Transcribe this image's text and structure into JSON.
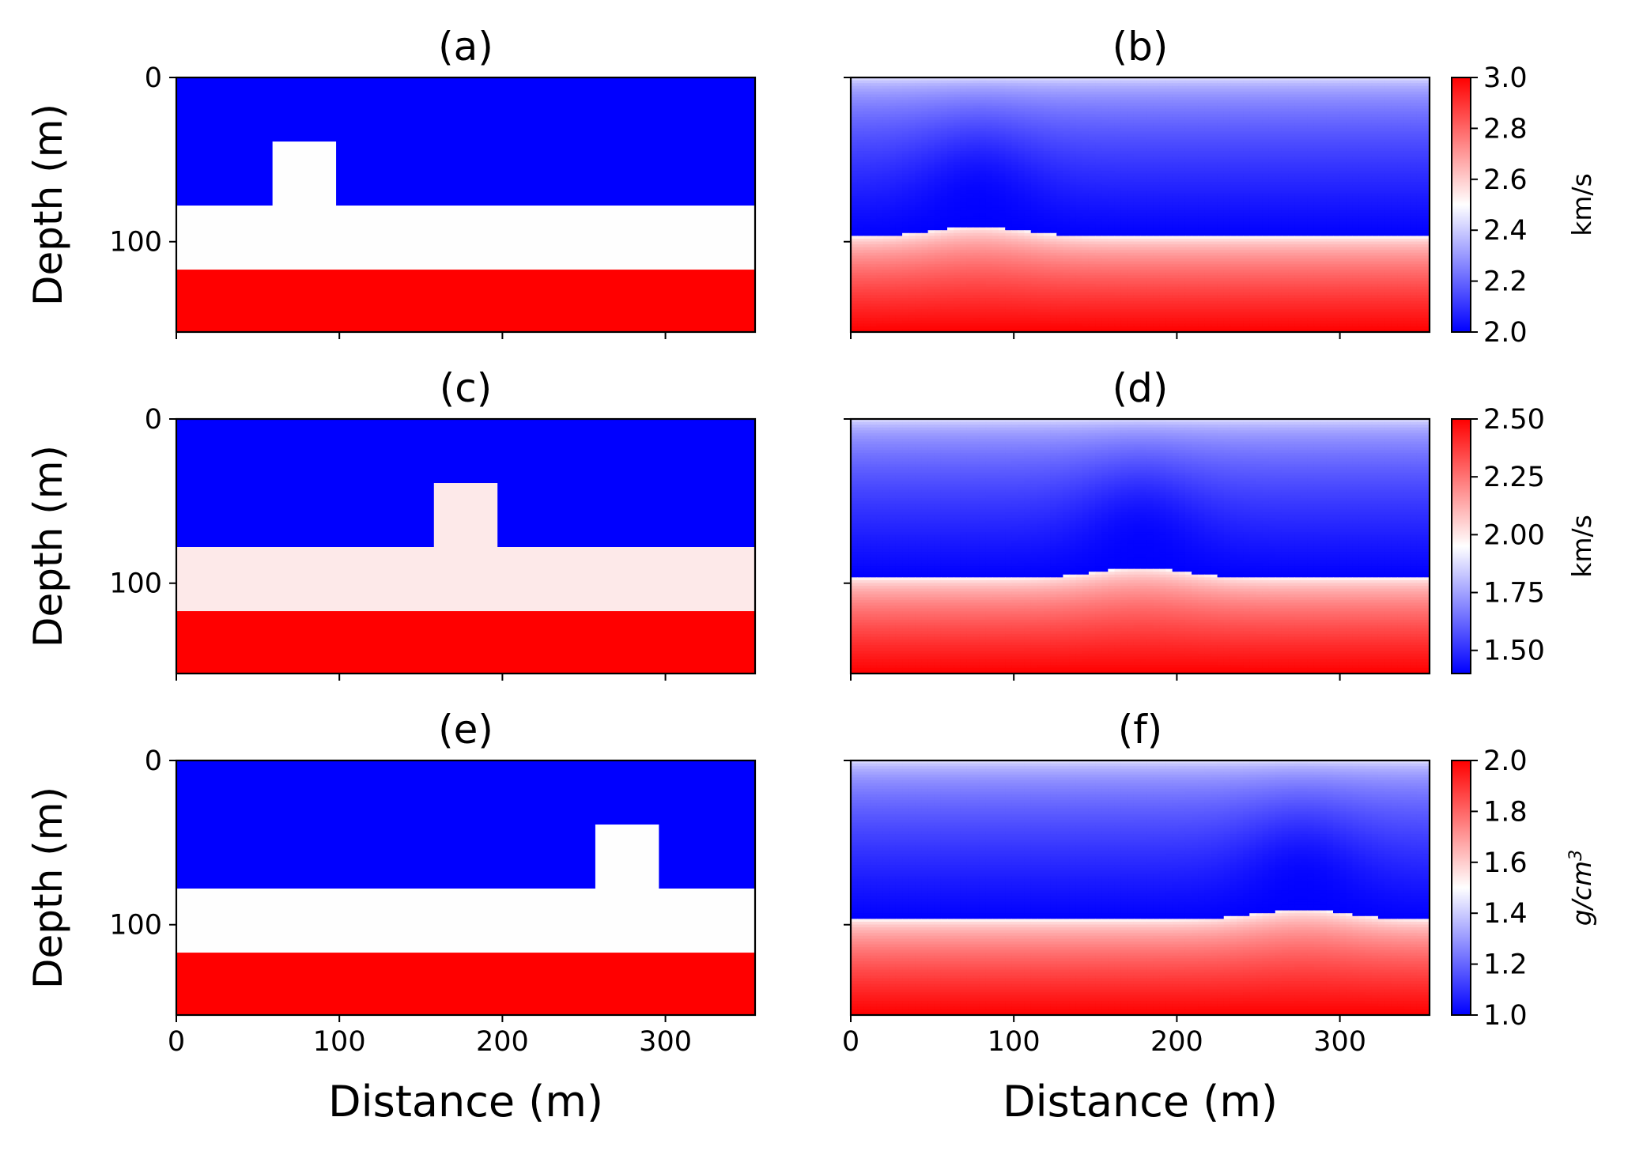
{
  "chart_data": [
    {
      "type": "heatmap",
      "id": "a",
      "title": "(a)",
      "xlabel": "",
      "ylabel": "Depth (m)",
      "xlim": [
        0,
        355
      ],
      "ylim": [
        155,
        0
      ],
      "xticks": [
        0,
        100,
        200,
        300
      ],
      "yticks": [
        0,
        100
      ],
      "xtick_labels": [
        "",
        "",
        "",
        ""
      ],
      "ytick_labels": [
        "0",
        "100"
      ],
      "colorscale": [
        "#0000ff",
        "#ffffff",
        "#ff0000"
      ],
      "model": {
        "layers": [
          {
            "top": 0,
            "bottom": 78,
            "color": "#0000ff"
          },
          {
            "top": 78,
            "bottom": 117,
            "color": "#fefefe"
          },
          {
            "top": 117,
            "bottom": 155,
            "color": "#ff0000"
          }
        ],
        "anomaly": {
          "x0": 59,
          "x1": 98,
          "top": 39,
          "bottom": 78,
          "color": "#fefefe"
        }
      }
    },
    {
      "type": "heatmap",
      "id": "b",
      "title": "(b)",
      "xlabel": "",
      "ylabel": "",
      "xlim": [
        0,
        355
      ],
      "ylim": [
        155,
        0
      ],
      "xticks": [
        0,
        100,
        200,
        300
      ],
      "yticks": [
        0,
        100
      ],
      "xtick_labels": [
        "",
        "",
        "",
        ""
      ],
      "ytick_labels": [
        "",
        ""
      ],
      "colorscale": [
        "#0000ff",
        "#ffffff",
        "#ff0000"
      ],
      "smooth": {
        "interface_depth": 97,
        "bump_center": 78,
        "bump_height": 6,
        "bump_width": 40
      },
      "colorbar": {
        "label": "km/s",
        "label_italic": false,
        "range": [
          2.0,
          3.0
        ],
        "ticks": [
          "2.0",
          "2.2",
          "2.4",
          "2.6",
          "2.8",
          "3.0"
        ],
        "tick_values": [
          2.0,
          2.2,
          2.4,
          2.6,
          2.8,
          3.0
        ]
      }
    },
    {
      "type": "heatmap",
      "id": "c",
      "title": "(c)",
      "xlabel": "",
      "ylabel": "Depth (m)",
      "xlim": [
        0,
        355
      ],
      "ylim": [
        155,
        0
      ],
      "xticks": [
        0,
        100,
        200,
        300
      ],
      "yticks": [
        0,
        100
      ],
      "xtick_labels": [
        "",
        "",
        "",
        ""
      ],
      "ytick_labels": [
        "0",
        "100"
      ],
      "colorscale": [
        "#0000ff",
        "#ffffff",
        "#ff0000"
      ],
      "model": {
        "layers": [
          {
            "top": 0,
            "bottom": 78,
            "color": "#0000ff"
          },
          {
            "top": 78,
            "bottom": 117,
            "color": "#fde9e9"
          },
          {
            "top": 117,
            "bottom": 155,
            "color": "#ff0000"
          }
        ],
        "anomaly": {
          "x0": 158,
          "x1": 197,
          "top": 39,
          "bottom": 78,
          "color": "#fde9e9"
        }
      }
    },
    {
      "type": "heatmap",
      "id": "d",
      "title": "(d)",
      "xlabel": "",
      "ylabel": "",
      "xlim": [
        0,
        355
      ],
      "ylim": [
        155,
        0
      ],
      "xticks": [
        0,
        100,
        200,
        300
      ],
      "yticks": [
        0,
        100
      ],
      "xtick_labels": [
        "",
        "",
        "",
        ""
      ],
      "ytick_labels": [
        "",
        ""
      ],
      "colorscale": [
        "#0000ff",
        "#ffffff",
        "#ff0000"
      ],
      "smooth": {
        "interface_depth": 97,
        "bump_center": 178,
        "bump_height": 6,
        "bump_width": 40
      },
      "colorbar": {
        "label": "km/s",
        "label_italic": false,
        "range": [
          1.4,
          2.5
        ],
        "ticks": [
          "1.50",
          "1.75",
          "2.00",
          "2.25",
          "2.50"
        ],
        "tick_values": [
          1.5,
          1.75,
          2.0,
          2.25,
          2.5
        ]
      }
    },
    {
      "type": "heatmap",
      "id": "e",
      "title": "(e)",
      "xlabel": "Distance (m)",
      "ylabel": "Depth (m)",
      "xlim": [
        0,
        355
      ],
      "ylim": [
        155,
        0
      ],
      "xticks": [
        0,
        100,
        200,
        300
      ],
      "yticks": [
        0,
        100
      ],
      "xtick_labels": [
        "0",
        "100",
        "200",
        "300"
      ],
      "ytick_labels": [
        "0",
        "100"
      ],
      "colorscale": [
        "#0000ff",
        "#ffffff",
        "#ff0000"
      ],
      "model": {
        "layers": [
          {
            "top": 0,
            "bottom": 78,
            "color": "#0000ff"
          },
          {
            "top": 78,
            "bottom": 117,
            "color": "#fefefe"
          },
          {
            "top": 117,
            "bottom": 155,
            "color": "#ff0000"
          }
        ],
        "anomaly": {
          "x0": 257,
          "x1": 296,
          "top": 39,
          "bottom": 78,
          "color": "#fefefe"
        }
      }
    },
    {
      "type": "heatmap",
      "id": "f",
      "title": "(f)",
      "xlabel": "Distance (m)",
      "ylabel": "",
      "xlim": [
        0,
        355
      ],
      "ylim": [
        155,
        0
      ],
      "xticks": [
        0,
        100,
        200,
        300
      ],
      "yticks": [
        0,
        100
      ],
      "xtick_labels": [
        "0",
        "100",
        "200",
        "300"
      ],
      "ytick_labels": [
        "",
        ""
      ],
      "colorscale": [
        "#0000ff",
        "#ffffff",
        "#ff0000"
      ],
      "smooth": {
        "interface_depth": 97,
        "bump_center": 277,
        "bump_height": 6,
        "bump_width": 40
      },
      "colorbar": {
        "label": "g/cm3",
        "label_italic": true,
        "range": [
          1.0,
          2.0
        ],
        "ticks": [
          "1.0",
          "1.2",
          "1.4",
          "1.6",
          "1.8",
          "2.0"
        ],
        "tick_values": [
          1.0,
          1.2,
          1.4,
          1.6,
          1.8,
          2.0
        ]
      }
    }
  ]
}
